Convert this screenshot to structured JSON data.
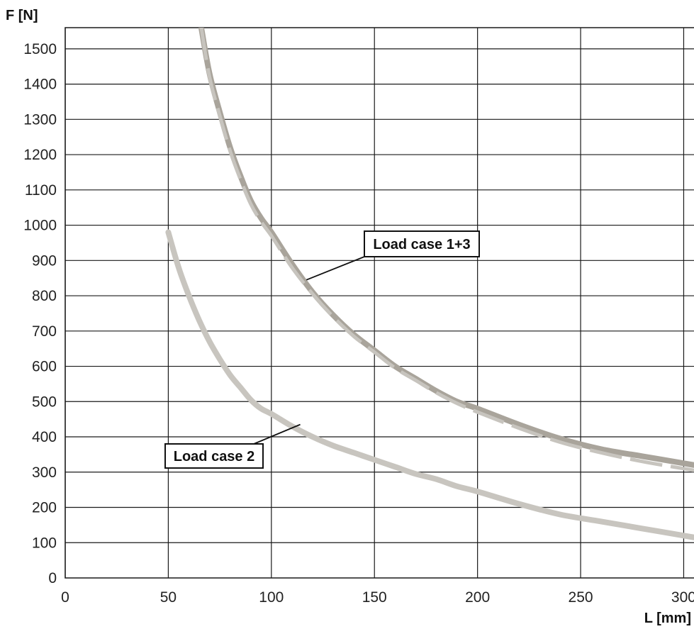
{
  "chart_data": {
    "type": "line",
    "title": "",
    "xlabel": "L [mm]",
    "ylabel": "F [N]",
    "xlim": [
      0,
      305
    ],
    "ylim": [
      0,
      1560
    ],
    "x_ticks": [
      0,
      50,
      100,
      150,
      200,
      250,
      300
    ],
    "y_ticks": [
      0,
      100,
      200,
      300,
      400,
      500,
      600,
      700,
      800,
      900,
      1000,
      1100,
      1200,
      1300,
      1400,
      1500
    ],
    "grid": true,
    "series": [
      {
        "name": "Load case 1+3",
        "style": "solid",
        "color": "#a9a49b",
        "x": [
          66,
          70,
          75,
          80,
          85,
          90,
          95,
          100,
          110,
          120,
          130,
          140,
          150,
          160,
          170,
          180,
          190,
          200,
          220,
          240,
          260,
          280,
          300,
          305
        ],
        "y": [
          1560,
          1430,
          1320,
          1220,
          1140,
          1070,
          1020,
          980,
          890,
          810,
          745,
          690,
          645,
          600,
          565,
          530,
          500,
          480,
          435,
          395,
          365,
          345,
          325,
          320
        ]
      },
      {
        "name": "",
        "style": "dashed",
        "color": "#c7c4be",
        "x": [
          66,
          70,
          75,
          80,
          85,
          90,
          95,
          100,
          110,
          120,
          130,
          140,
          150,
          160,
          170,
          180,
          190,
          200,
          220,
          240,
          260,
          280,
          300,
          305
        ],
        "y": [
          1560,
          1420,
          1310,
          1210,
          1130,
          1060,
          1010,
          970,
          880,
          805,
          740,
          685,
          640,
          595,
          560,
          525,
          495,
          470,
          425,
          385,
          355,
          330,
          310,
          305
        ]
      },
      {
        "name": "Load case 2",
        "style": "solid",
        "color": "#c8c5bf",
        "x": [
          50,
          55,
          60,
          65,
          70,
          75,
          80,
          85,
          90,
          95,
          100,
          110,
          120,
          130,
          140,
          150,
          160,
          170,
          180,
          190,
          200,
          220,
          240,
          260,
          280,
          300,
          305
        ],
        "y": [
          980,
          880,
          800,
          730,
          670,
          620,
          575,
          540,
          505,
          480,
          465,
          430,
          400,
          375,
          355,
          335,
          315,
          295,
          280,
          260,
          245,
          210,
          180,
          160,
          140,
          120,
          115
        ]
      }
    ],
    "annotations": [
      {
        "text": "Load case 1+3",
        "series": 0,
        "point_x": 117,
        "point_y": 845
      },
      {
        "text": "Load case 2",
        "series": 2,
        "point_x": 114,
        "point_y": 435
      }
    ]
  }
}
